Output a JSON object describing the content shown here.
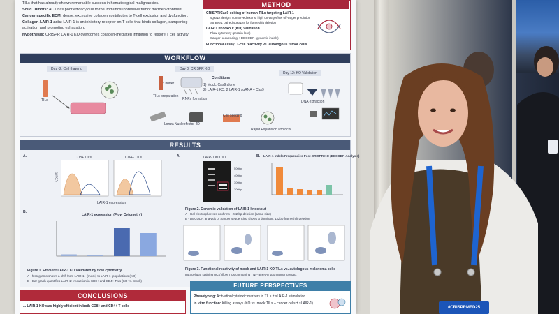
{
  "intro": {
    "line1": "TILs that has already shown remarkable success in hematological malignancies.",
    "solid_label": "Solid Tumors:",
    "solid_text": "ACT has poor efficacy due to the immunosuppressive tumor microenvironment",
    "ecm_label": "Cancer-specific ECM:",
    "ecm_text": "dense, excessive collagen contributes to T-cell exclusion and dysfunction.",
    "lair_label": "Collagen-LAIR-1 axis:",
    "lair_text": "LAIR-1 is an inhibitory receptor on T cells that binds collagen, dampening",
    "lair_text2": "activation and promoting exhaustion.",
    "hyp_label": "Hypothesis:",
    "hyp_text": "CRISPR LAIR-1 KO overcomes collagen-mediated inhibition to restore T cell activity"
  },
  "method": {
    "title": "METHOD",
    "items": [
      "CRISPR/Cas9 editing of human TILs targeting LAIR-1",
      "sgRNA design: conserved exons; high on-target/low off-target prediction",
      "Strategy: paired sgRNAs for frameshift deletion",
      "LAIR-1 knockout (KO) validation",
      "Flow cytometry (protein loss)",
      "Sanger sequencing + DECODR (genomic indels)",
      "Functional assay: T-cell reactivity vs. autologous tumor cells"
    ]
  },
  "workflow": {
    "title": "WORKFLOW",
    "day2": "Day -2: Cell thawing",
    "day0": "Day 0: CRISPR KO",
    "day12": "Day 12: KO Validation",
    "til": "TILs",
    "conditions": "Conditions",
    "cond1": "1) Mock: Cas9 alone",
    "cond2": "2) LAIR-1 KO: 2 LAIR-1 sgRNA + Cas9",
    "rnp": "RNPs formation",
    "prep": "TILs preparation",
    "p3": "P3 buffer",
    "lonza": "Lonza Nucleofector 4D",
    "seeding": "Cell seeding",
    "rep": "Rapid Expansion Protocol",
    "dna": "DNA extraction"
  },
  "results": {
    "title": "RESULTS",
    "panel_a": "A.",
    "panel_b": "B.",
    "cd8": "CD8+ TILs",
    "cd4": "CD4+ TILs",
    "lair_expr": "LAIR-1 expression",
    "flow_title": "LAIR-1 expression (Flow Cytometry)",
    "count": "Count",
    "fig1": "Figure 1. Efficient LAIR-1 KO validated by flow cytometry",
    "fig1a": "A - histograms shows a shift from LAIR-1+ (mock) to LAIR-1- populations (KO)",
    "fig1b": "B - Bar graph quantifies LAIR-1+ reduction in CD8+ and CD4+ TILs (KO vs. mock)",
    "gel_a": "A.",
    "gel_lanes": "LAIR-1 KO  WT",
    "gel_b": "B.",
    "decodr_title": "LAIR-1 Indels Frequencies Post-CRISPR KO (DECODR Analysis)",
    "fig2": "Figure 2. Genomic validation of LAIR-1 knockout",
    "fig2a": "A - Gel electrophoresis confirms ~232 bp deletion (same size)",
    "fig2b": "B - DECODR analysis of Sanger sequencing shows a dominant 132bp frameshift deletion",
    "fig3": "Figure 3. Functional reactivity of mock and LAIR-1 KO TILs vs. autologous melanoma cells",
    "fig3a": "Intracellular staining (ICS) flow TILs comparing TNF-a/IFN-g upon tumor contact",
    "bp1": "500bp",
    "bp2": "400bp",
    "bp3": "300bp",
    "bp4": "200bp"
  },
  "flow_chart": {
    "categories": [
      "CD8+ TILs LAIR-1 KO",
      "CD8+ TILs MOCK",
      "CD4+ TILs LAIR-1 KO",
      "CD4+ TILs MOCK"
    ],
    "values": [
      5,
      2,
      80,
      66
    ]
  },
  "conclusions": {
    "title": "CONCLUSIONS",
    "text": "... LAIR-1 KO was highly efficient in both CD8+ and CD4+ T cells"
  },
  "future": {
    "title": "FUTURE PERSPECTIVES",
    "item1_label": "Phenotyping:",
    "item1_text": "Activation/cytotoxic markers in TILs ± sLAIR-1 stimulation",
    "item2_label": "In vitro function:",
    "item2_text": "Killing assays (KO vs. mock TILs + cancer cells ± sLAIR-1)"
  },
  "badge": {
    "text": "#CRISPRMED25"
  },
  "colors": {
    "header_navy": "#2f3e5c",
    "results_slate": "#4a5a78",
    "method_red": "#a8263b",
    "conclusions_red": "#b02a3a",
    "future_teal": "#3e7fa8",
    "lanyard_blue": "#1e64d0"
  }
}
